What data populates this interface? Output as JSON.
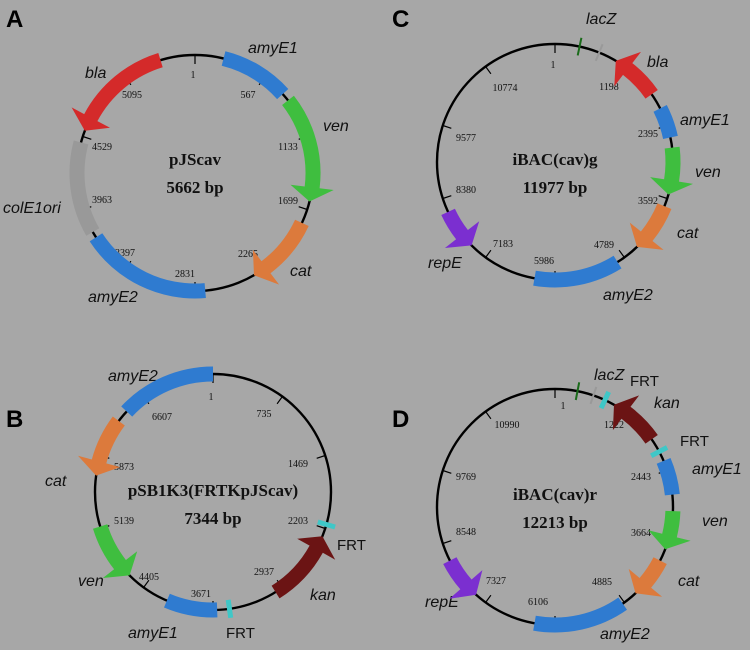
{
  "colors": {
    "background": "#a7a7a7",
    "bla": "#d42a2a",
    "amyE": "#2f7bd0",
    "ven": "#3fbe3f",
    "cat": "#dc7a3c",
    "colE1ori": "#999999",
    "repE": "#7b2fd0",
    "kan": "#6b1414",
    "frt": "#3fc7c7",
    "lacZ": "#1a6b1a",
    "backbone": "#000000"
  },
  "panels": [
    {
      "letter": "A",
      "name": "pJScav",
      "size_label": "5662 bp",
      "ticks": [
        "1",
        "567",
        "1133",
        "1699",
        "2265",
        "2831",
        "3397",
        "3963",
        "4529",
        "5095"
      ],
      "features": [
        {
          "name": "amyE1",
          "color": "amyE",
          "icon": "block-arc"
        },
        {
          "name": "ven",
          "color": "ven",
          "icon": "arrow-clockwise"
        },
        {
          "name": "cat",
          "color": "cat",
          "icon": "arrow-clockwise"
        },
        {
          "name": "amyE2",
          "color": "amyE",
          "icon": "block-arc"
        },
        {
          "name": "colE1ori",
          "color": "colE1ori",
          "icon": "block-arc"
        },
        {
          "name": "bla",
          "color": "bla",
          "icon": "arrow-counterclockwise"
        }
      ]
    },
    {
      "letter": "B",
      "name": "pSB1K3(FRTKpJScav)",
      "size_label": "7344 bp",
      "ticks": [
        "1",
        "735",
        "1469",
        "2203",
        "2937",
        "3671",
        "4405",
        "5139",
        "5873",
        "6607"
      ],
      "features": [
        {
          "name": "FRT",
          "color": "frt",
          "icon": "site-marker"
        },
        {
          "name": "kan",
          "color": "kan",
          "icon": "arrow-counterclockwise"
        },
        {
          "name": "FRT",
          "color": "frt",
          "icon": "site-marker"
        },
        {
          "name": "amyE1",
          "color": "amyE",
          "icon": "block-arc"
        },
        {
          "name": "ven",
          "color": "ven",
          "icon": "arrow-counterclockwise"
        },
        {
          "name": "cat",
          "color": "cat",
          "icon": "arrow-counterclockwise"
        },
        {
          "name": "amyE2",
          "color": "amyE",
          "icon": "block-arc"
        }
      ]
    },
    {
      "letter": "C",
      "name": "iBAC(cav)g",
      "size_label": "11977 bp",
      "ticks": [
        "1",
        "1198",
        "2395",
        "3592",
        "4789",
        "5986",
        "7183",
        "8380",
        "9577",
        "10774"
      ],
      "features": [
        {
          "name": "lacZ",
          "color": "lacZ",
          "icon": "site-marker"
        },
        {
          "name": "bla",
          "color": "bla",
          "icon": "arrow-counterclockwise"
        },
        {
          "name": "amyE1",
          "color": "amyE",
          "icon": "block-arc"
        },
        {
          "name": "ven",
          "color": "ven",
          "icon": "arrow-clockwise"
        },
        {
          "name": "cat",
          "color": "cat",
          "icon": "arrow-clockwise"
        },
        {
          "name": "amyE2",
          "color": "amyE",
          "icon": "block-arc"
        },
        {
          "name": "repE",
          "color": "repE",
          "icon": "arrow-counterclockwise"
        }
      ]
    },
    {
      "letter": "D",
      "name": "iBAC(cav)r",
      "size_label": "12213 bp",
      "ticks": [
        "1",
        "1222",
        "2443",
        "3664",
        "4885",
        "6106",
        "7327",
        "8548",
        "9769",
        "10990"
      ],
      "features": [
        {
          "name": "lacZ",
          "color": "lacZ",
          "icon": "site-marker"
        },
        {
          "name": "FRT",
          "color": "frt",
          "icon": "site-marker"
        },
        {
          "name": "kan",
          "color": "kan",
          "icon": "arrow-counterclockwise"
        },
        {
          "name": "FRT",
          "color": "frt",
          "icon": "site-marker"
        },
        {
          "name": "amyE1",
          "color": "amyE",
          "icon": "block-arc"
        },
        {
          "name": "ven",
          "color": "ven",
          "icon": "arrow-clockwise"
        },
        {
          "name": "cat",
          "color": "cat",
          "icon": "arrow-clockwise"
        },
        {
          "name": "amyE2",
          "color": "amyE",
          "icon": "block-arc"
        },
        {
          "name": "repE",
          "color": "repE",
          "icon": "arrow-counterclockwise"
        }
      ]
    }
  ]
}
